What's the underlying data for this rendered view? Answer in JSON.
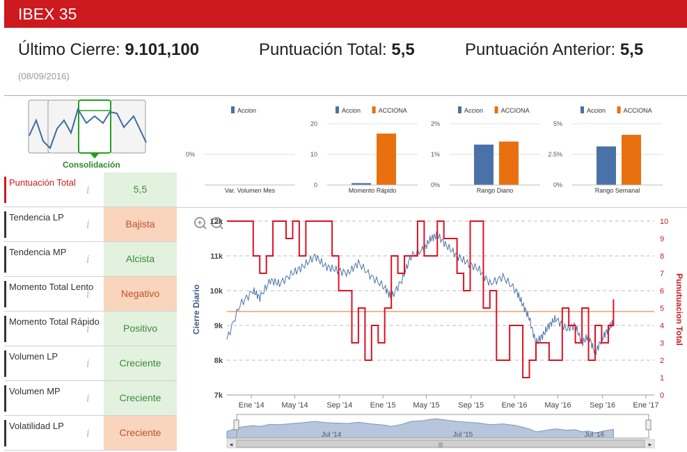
{
  "header": {
    "title": "IBEX 35"
  },
  "summary": {
    "ultimo_cierre_label": "Último Cierre:",
    "ultimo_cierre_value": "9.101,100",
    "puntuacion_total_label": "Puntuación Total:",
    "puntuacion_total_value": "5,5",
    "puntuacion_anterior_label": "Puntuación Anterior:",
    "puntuacion_anterior_value": "5,5",
    "date": "(08/09/2016)"
  },
  "pattern": {
    "label": "Consolidación"
  },
  "indicators": [
    {
      "name": "Puntuación Total",
      "value": "5,5",
      "tone": "green",
      "highlight": true
    },
    {
      "name": "Tendencia LP",
      "value": "Bajista",
      "tone": "orange"
    },
    {
      "name": "Tendencia MP",
      "value": "Alcista",
      "tone": "green"
    },
    {
      "name": "Momento Total Lento",
      "value": "Negativo",
      "tone": "orange"
    },
    {
      "name": "Momento Total Rápido",
      "value": "Positivo",
      "tone": "green"
    },
    {
      "name": "Volumen LP",
      "value": "Creciente",
      "tone": "green"
    },
    {
      "name": "Volumen MP",
      "value": "Creciente",
      "tone": "green"
    },
    {
      "name": "Volatilidad LP",
      "value": "Creciente",
      "tone": "orange"
    }
  ],
  "colors": {
    "accion": "#4a72a8",
    "acciona": "#e8700f",
    "brand_red": "#cc1a1f",
    "price_line": "#4a72a8",
    "score_line": "#dd1020"
  },
  "chart_data": [
    {
      "type": "bar",
      "title": "Var. Volumen Mes",
      "legend": [
        "Accion"
      ],
      "categories": [
        "Accion"
      ],
      "values": [
        0
      ],
      "ylim": [
        -1,
        1
      ],
      "ticks": [
        "0%"
      ]
    },
    {
      "type": "bar",
      "title": "Momento Rápido",
      "legend": [
        "Accion",
        "ACCIONA"
      ],
      "categories": [
        "Accion",
        "ACCIONA"
      ],
      "values": [
        0.6,
        16.8
      ],
      "ylim": [
        0,
        20
      ],
      "ticks": [
        "0",
        "10",
        "20"
      ]
    },
    {
      "type": "bar",
      "title": "Rango Diario",
      "legend": [
        "Accion",
        "ACCIONA"
      ],
      "categories": [
        "Accion",
        "ACCIONA"
      ],
      "values": [
        1.32,
        1.42
      ],
      "ylim": [
        0,
        2
      ],
      "ticks": [
        "0%",
        "1%",
        "2%"
      ]
    },
    {
      "type": "bar",
      "title": "Rango Semanal",
      "legend": [
        "Accion",
        "ACCIONA"
      ],
      "categories": [
        "Accion",
        "ACCIONA"
      ],
      "values": [
        3.15,
        4.1
      ],
      "ylim": [
        0,
        5
      ],
      "ticks": [
        "0%",
        "2.5%",
        "5%"
      ]
    },
    {
      "type": "line",
      "ylabel": "Cierre Diario",
      "y2label": "Punutuacion Total",
      "ylim": [
        7000,
        12000
      ],
      "y_ticks": [
        "7k",
        "8k",
        "9k",
        "10k",
        "11k",
        "12k"
      ],
      "y2lim": [
        0,
        10
      ],
      "y2_ticks": [
        "0",
        "1",
        "2",
        "3",
        "4",
        "5",
        "6",
        "7",
        "8",
        "9",
        "10"
      ],
      "x_ticks": [
        "Ene '14",
        "May '14",
        "Sep '14",
        "Ene '15",
        "May '15",
        "Sep '15",
        "Ene '16",
        "May '16",
        "Sep '16",
        "Ene '17"
      ],
      "xlim": [
        2013.75,
        2017.0
      ],
      "reference_line": 4.8,
      "series": [
        {
          "name": "Cierre Diario",
          "x": [
            2013.75,
            2013.85,
            2013.95,
            2014.0,
            2014.08,
            2014.15,
            2014.25,
            2014.33,
            2014.42,
            2014.5,
            2014.58,
            2014.67,
            2014.75,
            2014.85,
            2014.95,
            2015.0,
            2015.08,
            2015.15,
            2015.25,
            2015.3,
            2015.35,
            2015.42,
            2015.5,
            2015.58,
            2015.67,
            2015.75,
            2015.85,
            2015.95,
            2016.0,
            2016.05,
            2016.1,
            2016.15,
            2016.2,
            2016.25,
            2016.33,
            2016.4,
            2016.45,
            2016.5,
            2016.55,
            2016.6,
            2016.65,
            2016.69
          ],
          "values": [
            8600,
            9600,
            10000,
            9800,
            10300,
            10200,
            10500,
            10700,
            11000,
            10700,
            10600,
            10500,
            10800,
            10400,
            10100,
            9800,
            10300,
            11000,
            11200,
            11500,
            11600,
            11300,
            11000,
            10800,
            10600,
            10200,
            10400,
            10000,
            9600,
            9200,
            8500,
            8700,
            9000,
            9200,
            8900,
            9000,
            8500,
            8700,
            8200,
            8600,
            8900,
            9100
          ]
        },
        {
          "name": "Puntuación Total",
          "x": [
            2013.75,
            2013.9,
            2013.95,
            2014.0,
            2014.05,
            2014.1,
            2014.2,
            2014.25,
            2014.3,
            2014.35,
            2014.5,
            2014.55,
            2014.6,
            2014.7,
            2014.75,
            2014.8,
            2014.85,
            2014.9,
            2014.95,
            2015.0,
            2015.05,
            2015.1,
            2015.2,
            2015.25,
            2015.35,
            2015.4,
            2015.5,
            2015.55,
            2015.6,
            2015.7,
            2015.75,
            2015.8,
            2015.9,
            2016.0,
            2016.05,
            2016.1,
            2016.2,
            2016.3,
            2016.35,
            2016.4,
            2016.45,
            2016.5,
            2016.55,
            2016.6,
            2016.65,
            2016.69
          ],
          "values": [
            10,
            10,
            8,
            7,
            8,
            10,
            9,
            10,
            8,
            10,
            10,
            8,
            6,
            3,
            5,
            2,
            4,
            3,
            5,
            8,
            7,
            8,
            10,
            8,
            10,
            9,
            7,
            6,
            10,
            5,
            6,
            2,
            4,
            1,
            2,
            3,
            2,
            5,
            4,
            3,
            5,
            2,
            4,
            3,
            4,
            5.5
          ]
        }
      ]
    },
    {
      "type": "area",
      "title": "navigator",
      "x_ticks": [
        "Jul '14",
        "Jul '15",
        "Jul '16"
      ]
    }
  ]
}
